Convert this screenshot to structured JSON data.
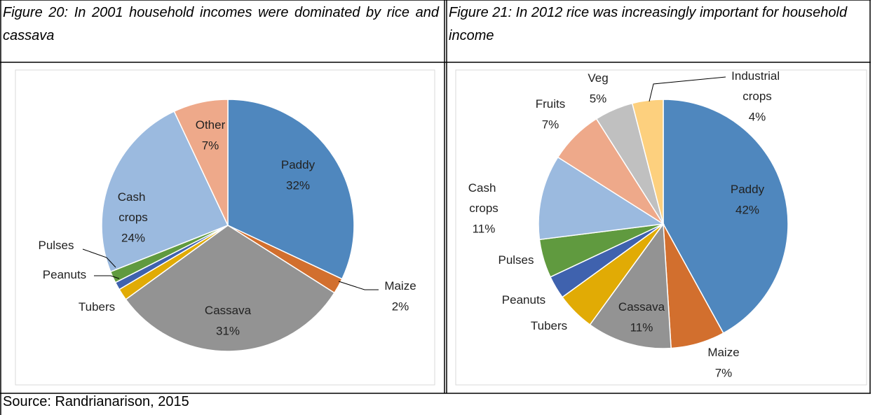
{
  "captions": [
    "Figure 20: In 2001 household incomes were dominated by rice and cassava",
    "Figure 21: In 2012 rice was increasingly important for household income"
  ],
  "source": "Source: Randrianarison, 2015",
  "chart_data": [
    {
      "type": "pie",
      "categories": [
        "Paddy",
        "Maize",
        "Cassava",
        "Tubers",
        "Peanuts",
        "Pulses",
        "Cash crops",
        "Other"
      ],
      "values": [
        32,
        2,
        31,
        1.5,
        1,
        1.5,
        24,
        7
      ],
      "value_labels": [
        "32%",
        "2%",
        "31%",
        null,
        null,
        null,
        "24%",
        "7%"
      ],
      "colors": [
        "#4f87be",
        "#d26f2e",
        "#939393",
        "#e1ab05",
        "#3f62ae",
        "#609a3f",
        "#9bbadf",
        "#eea98a"
      ]
    },
    {
      "type": "pie",
      "categories": [
        "Paddy",
        "Maize",
        "Cassava",
        "Tubers",
        "Peanuts",
        "Pulses",
        "Cash crops",
        "Fruits",
        "Veg",
        "Industrial crops"
      ],
      "values": [
        42,
        7,
        11,
        5,
        3,
        5,
        11,
        7,
        5,
        4
      ],
      "value_labels": [
        "42%",
        "7%",
        "11%",
        null,
        null,
        null,
        "11%",
        "7%",
        "5%",
        "4%"
      ],
      "colors": [
        "#4f87be",
        "#d26f2e",
        "#939393",
        "#e1ab05",
        "#3f62ae",
        "#609a3f",
        "#9bbadf",
        "#eea98a",
        "#c0c0c0",
        "#fdd07e"
      ]
    }
  ]
}
